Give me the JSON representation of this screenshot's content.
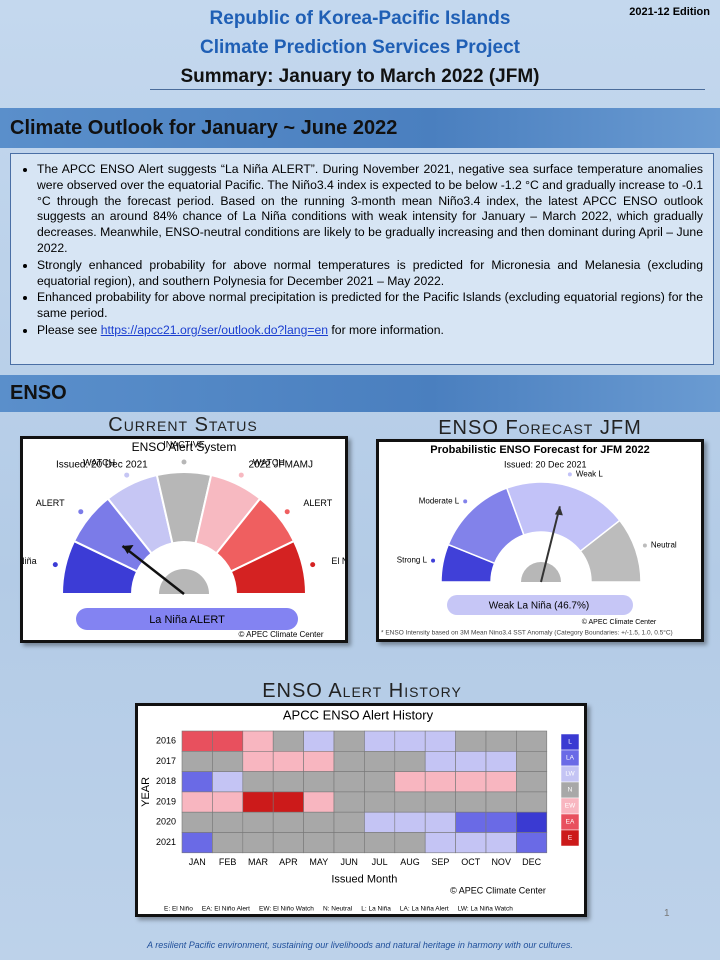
{
  "header": {
    "edition": "2021-12 Edition",
    "title_line1": "Republic of Korea-Pacific Islands",
    "title_line2": "Climate Prediction Services Project",
    "summary": "Summary: January to March 2022 (JFM)"
  },
  "outlook": {
    "heading": "Climate Outlook for January ~ June 2022",
    "bullets": [
      "The APCC ENSO Alert suggests “La Niña ALERT”. During November 2021, negative sea surface temperature anomalies were observed over the equatorial Pacific. The Niño3.4 index is expected to be below -1.2 °C and gradually increase to -0.1 °C through the forecast period. Based on the running 3-month mean Niño3.4 index, the latest APCC ENSO outlook suggests an around 84% chance of La Niña conditions with weak intensity for January – March 2022, which gradually decreases. Meanwhile, ENSO-neutral conditions are likely to be gradually increasing and then dominant during April – June 2022.",
      "Strongly enhanced probability for above normal temperatures is predicted for Micronesia and Melanesia (excluding equatorial region), and southern Polynesia for December 2021 – May 2022.",
      "Enhanced probability for above normal precipitation is predicted for the Pacific Islands (excluding equatorial regions) for the same period."
    ],
    "see": {
      "before": "Please see",
      "link": "https://apcc21.org/ser/outlook.do?lang=en",
      "after": "for more information."
    }
  },
  "enso": {
    "heading": "ENSO",
    "current_status": {
      "label": "Current Status",
      "panel_title": "ENSO Alert System",
      "issued": "Issued: 20 Dec 2021",
      "period": "2022 JFMAMJ",
      "states": [
        {
          "label": "La Niña",
          "color": "#3c3cd6"
        },
        {
          "label": "ALERT",
          "color": "#7b7be8"
        },
        {
          "label": "WATCH",
          "color": "#c6c6f4"
        },
        {
          "label": "INACTIVE",
          "color": "#b7b7b7"
        },
        {
          "label": "WATCH",
          "color": "#f7b9c1"
        },
        {
          "label": "ALERT",
          "color": "#ef5f60"
        },
        {
          "label": "El Niño",
          "color": "#d42222"
        }
      ],
      "result": "La Niña ALERT",
      "credit": "© APEC Climate Center"
    },
    "forecast": {
      "label": "ENSO Forecast JFM",
      "panel_title": "Probabilistic ENSO Forecast for JFM 2022",
      "issued": "Issued: 20 Dec 2021",
      "states": [
        {
          "label": "Strong L",
          "color": "#4040d8"
        },
        {
          "label": "Moderate L",
          "color": "#8282ea"
        },
        {
          "label": "Weak L",
          "color": "#c2c2f8"
        },
        {
          "label": "Neutral",
          "color": "#bcbcbc"
        }
      ],
      "result": "Weak La Niña (46.7%)",
      "credit": "© APEC Climate Center",
      "footnote": "* ENSO Intensity based on 3M Mean Nino3.4 SST Anomaly (Category Boundaries: +/-1.5, 1.0, 0.5°C)"
    },
    "history": {
      "label": "ENSO Alert History",
      "panel_title": "APCC ENSO Alert History",
      "y_axis": "YEAR",
      "x_axis": "Issued Month",
      "years": [
        "2016",
        "2017",
        "2018",
        "2019",
        "2020",
        "2021"
      ],
      "months": [
        "JAN",
        "FEB",
        "MAR",
        "APR",
        "MAY",
        "JUN",
        "JUL",
        "AUG",
        "SEP",
        "OCT",
        "NOV",
        "DEC"
      ],
      "legend": [
        {
          "code": "L",
          "color": "#3a3ad2"
        },
        {
          "code": "LA",
          "color": "#6a6ae6"
        },
        {
          "code": "LW",
          "color": "#c4c4f4"
        },
        {
          "code": "N",
          "color": "#a8a8a8"
        },
        {
          "code": "EW",
          "color": "#f8b6c0"
        },
        {
          "code": "EA",
          "color": "#e8505e"
        },
        {
          "code": "E",
          "color": "#cc1a1a"
        }
      ],
      "cells": [
        [
          "EA",
          "EA",
          "EW",
          "N",
          "LW",
          "N",
          "LW",
          "LW",
          "LW",
          "N",
          "N",
          "N"
        ],
        [
          "N",
          "N",
          "EW",
          "EW",
          "EW",
          "N",
          "N",
          "N",
          "LW",
          "LW",
          "LW",
          "N"
        ],
        [
          "LA",
          "LW",
          "N",
          "N",
          "N",
          "N",
          "N",
          "EW",
          "EW",
          "EW",
          "EW",
          "N"
        ],
        [
          "EW",
          "EW",
          "E",
          "E",
          "EW",
          "N",
          "N",
          "N",
          "N",
          "N",
          "N",
          "N"
        ],
        [
          "N",
          "N",
          "N",
          "N",
          "N",
          "N",
          "LW",
          "LW",
          "LW",
          "LA",
          "LA",
          "L"
        ],
        [
          "LA",
          "N",
          "N",
          "N",
          "N",
          "N",
          "N",
          "N",
          "LW",
          "LW",
          "LW",
          "LA"
        ]
      ],
      "credit": "© APEC Climate Center",
      "key": "E: El Niño     EA: El Niño Alert     EW: El Niño Watch     N: Neutral     L: La Niña     LA: La Niña Alert     LW: La Niña Watch"
    }
  },
  "footer": {
    "page_number": "1",
    "tagline": "A resilient Pacific environment, sustaining our livelihoods and natural heritage in harmony with our cultures."
  }
}
